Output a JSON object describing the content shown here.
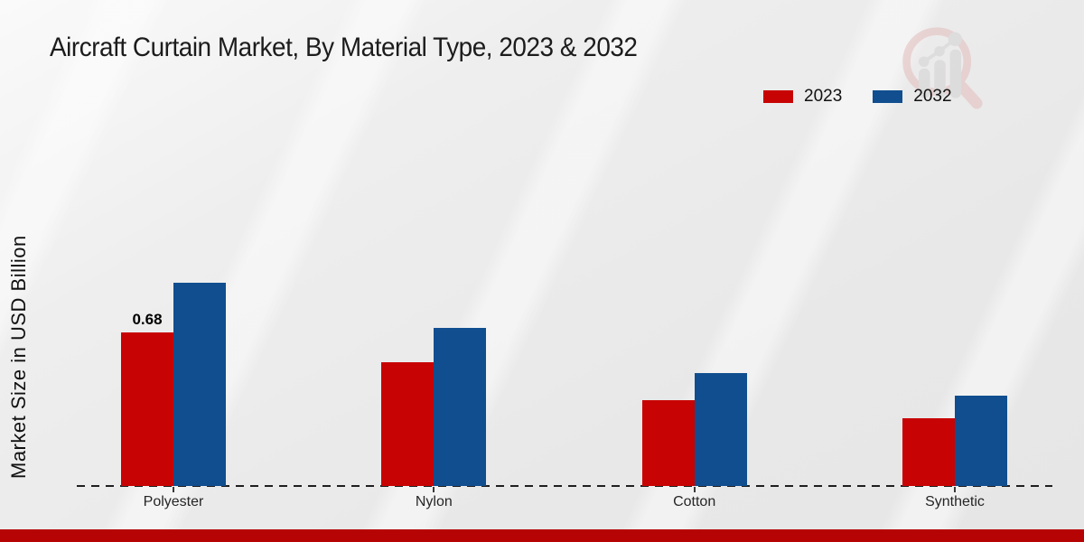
{
  "title": "Aircraft Curtain Market, By Material Type, 2023 & 2032",
  "ylabel": "Market Size in USD Billion",
  "legend": {
    "items": [
      {
        "label": "2023",
        "color": "#c80303"
      },
      {
        "label": "2032",
        "color": "#104e8f"
      }
    ]
  },
  "watermark": {
    "name": "market-research-magnifier-logo"
  },
  "footer": {
    "color": "#b60404"
  },
  "colors": {
    "series_2023": "#c80303",
    "series_2032": "#104e8f",
    "background": "#e9e9e9",
    "baseline": "#1f1f1f"
  },
  "chart_data": {
    "type": "bar",
    "title": "Aircraft Curtain Market, By Material Type, 2023 & 2032",
    "categories": [
      "Polyester",
      "Nylon",
      "Cotton",
      "Synthetic"
    ],
    "series": [
      {
        "name": "2023",
        "color": "#c80303",
        "values": [
          0.68,
          0.55,
          0.38,
          0.3
        ]
      },
      {
        "name": "2032",
        "color": "#104e8f",
        "values": [
          0.9,
          0.7,
          0.5,
          0.4
        ]
      }
    ],
    "xlabel": "",
    "ylabel": "Market Size in USD Billion",
    "ylim": [
      0,
      1.0
    ],
    "grid": false,
    "axis_style": "dashed-baseline-only",
    "legend_position": "top-right",
    "data_labels": [
      {
        "series": "2023",
        "category": "Polyester",
        "text": "0.68"
      }
    ]
  }
}
